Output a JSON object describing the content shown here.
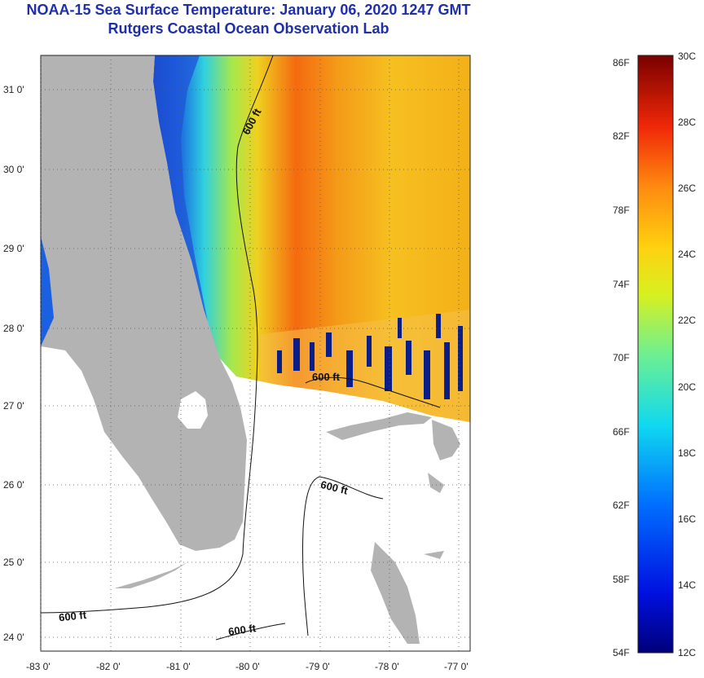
{
  "header": {
    "title": "NOAA-15 Sea Surface Temperature:  January 06, 2020 1247 GMT",
    "subtitle": "Rutgers Coastal Ocean Observation Lab"
  },
  "map": {
    "lat_labels": [
      "31 0'",
      "30 0'",
      "29 0'",
      "28 0'",
      "27 0'",
      "26 0'",
      "25 0'",
      "24 0'"
    ],
    "lon_labels": [
      "-83 0'",
      "-82 0'",
      "-81 0'",
      "-80 0'",
      "-79 0'",
      "-78 0'",
      "-77 0'"
    ],
    "contour_labels": [
      "600 ft",
      "600 ft",
      "600 ft",
      "600 ft",
      "600 ft"
    ]
  },
  "colorbar": {
    "fahrenheit": [
      "86F",
      "82F",
      "78F",
      "74F",
      "70F",
      "66F",
      "62F",
      "58F",
      "54F"
    ],
    "celsius": [
      "30C",
      "28C",
      "26C",
      "24C",
      "22C",
      "20C",
      "18C",
      "16C",
      "14C",
      "12C"
    ]
  },
  "colors": {
    "title": "#1f2fa8",
    "land": "#b3b3b3",
    "cloud": "#ffffff"
  }
}
